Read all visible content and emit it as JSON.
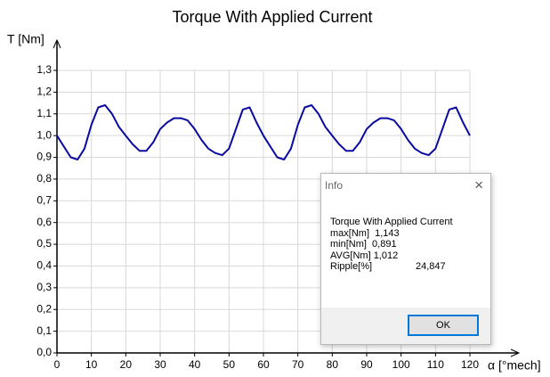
{
  "chart_data": {
    "type": "line",
    "title": "Torque With Applied Current",
    "y_label": "T [Nm]",
    "x_label": "α [°mech]",
    "x": [
      0,
      2,
      4,
      6,
      8,
      10,
      12,
      14,
      16,
      18,
      20,
      22,
      24,
      26,
      28,
      30,
      32,
      34,
      36,
      38,
      40,
      42,
      44,
      46,
      48,
      50,
      52,
      54,
      56,
      58,
      60,
      62,
      64,
      66,
      68,
      70,
      72,
      74,
      76,
      78,
      80,
      82,
      84,
      86,
      88,
      90,
      92,
      94,
      96,
      98,
      100,
      102,
      104,
      106,
      108,
      110,
      112,
      114,
      116,
      118,
      120
    ],
    "series": [
      {
        "color": "#0a0aa0",
        "values": [
          1.0,
          0.95,
          0.9,
          0.89,
          0.94,
          1.05,
          1.13,
          1.14,
          1.1,
          1.04,
          1.0,
          0.96,
          0.93,
          0.93,
          0.97,
          1.03,
          1.06,
          1.08,
          1.08,
          1.07,
          1.03,
          0.98,
          0.94,
          0.92,
          0.91,
          0.94,
          1.03,
          1.12,
          1.13,
          1.06,
          1.0,
          0.95,
          0.9,
          0.89,
          0.94,
          1.05,
          1.13,
          1.14,
          1.1,
          1.04,
          1.0,
          0.96,
          0.93,
          0.93,
          0.97,
          1.03,
          1.06,
          1.08,
          1.08,
          1.07,
          1.03,
          0.98,
          0.94,
          0.92,
          0.91,
          0.94,
          1.03,
          1.12,
          1.13,
          1.06,
          1.0
        ]
      }
    ],
    "xlim": [
      0,
      120
    ],
    "xticks": [
      0,
      10,
      20,
      30,
      40,
      50,
      60,
      70,
      80,
      90,
      100,
      110,
      120
    ],
    "ylim": [
      0,
      1.3
    ],
    "yticks": [
      {
        "value": 0,
        "label": "0,0"
      },
      {
        "value": 0.1,
        "label": "0,1"
      },
      {
        "value": 0.2,
        "label": "0,2"
      },
      {
        "value": 0.3,
        "label": "0,3"
      },
      {
        "value": 0.4,
        "label": "0,4"
      },
      {
        "value": 0.5,
        "label": "0,5"
      },
      {
        "value": 0.6,
        "label": "0,6"
      },
      {
        "value": 0.7,
        "label": "0,7"
      },
      {
        "value": 0.8,
        "label": "0,8"
      },
      {
        "value": 0.9,
        "label": "0,9"
      },
      {
        "value": 1.0,
        "label": "1,0"
      },
      {
        "value": 1.1,
        "label": "1,1"
      },
      {
        "value": 1.2,
        "label": "1,2"
      },
      {
        "value": 1.3,
        "label": "1,3"
      }
    ],
    "grid": true
  },
  "dialog": {
    "title": "Info",
    "heading": "Torque With Applied Current",
    "lines": [
      "max[Nm]  1,143",
      "min[Nm]  0,891",
      "AVG[Nm] 1,012"
    ],
    "ripple_label": "Ripple[%]",
    "ripple_value": "24,847",
    "button": "OK"
  }
}
